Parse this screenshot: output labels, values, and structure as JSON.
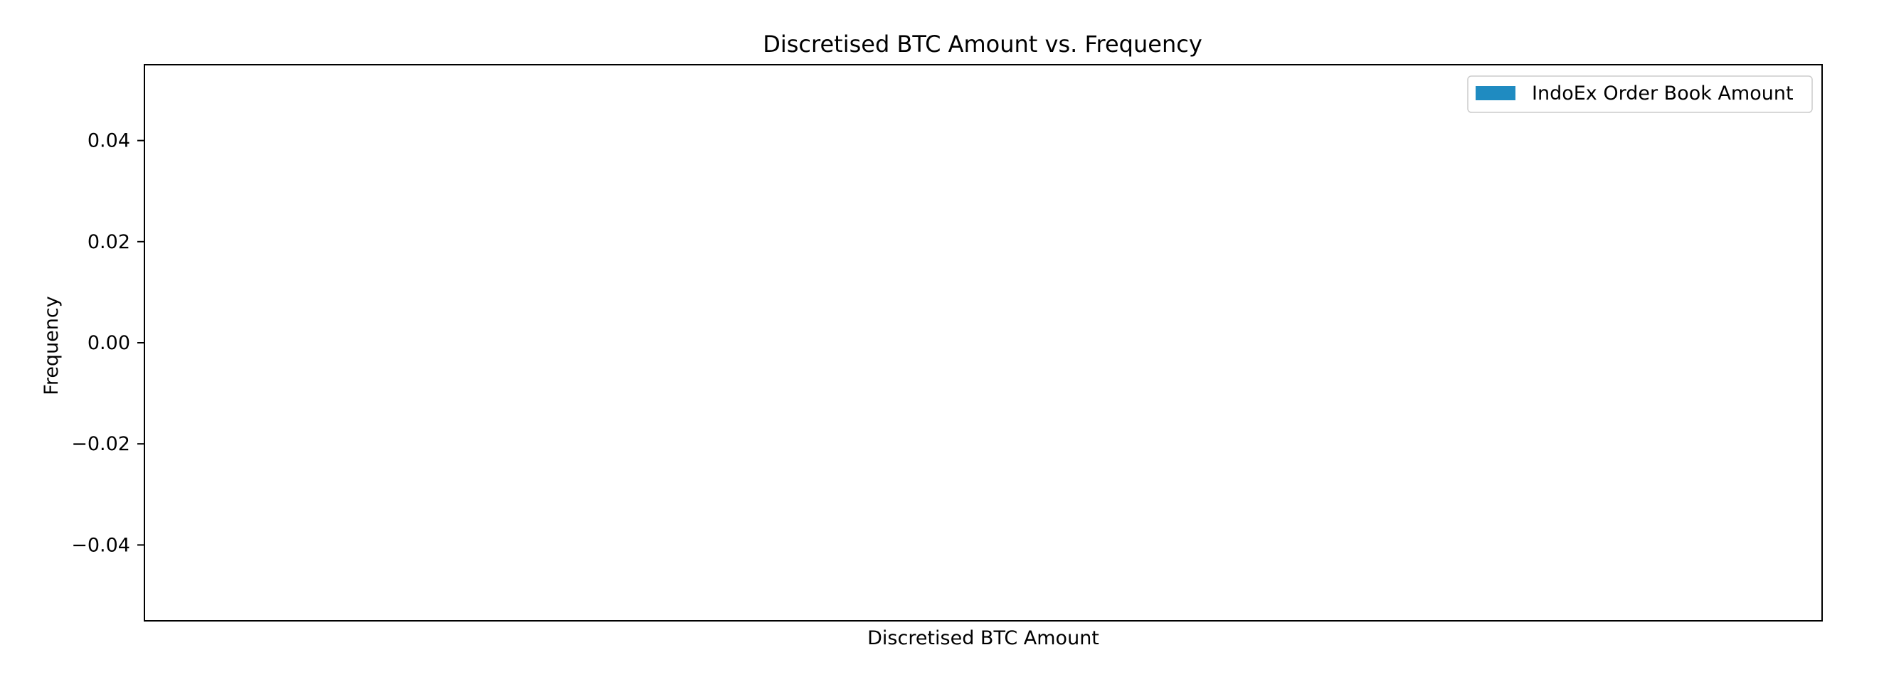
{
  "chart_data": {
    "type": "bar",
    "title": "Discretised BTC Amount vs. Frequency",
    "xlabel": "Discretised BTC Amount",
    "ylabel": "Frequency",
    "ylim": [
      -0.055,
      0.055
    ],
    "yticks": [
      {
        "value": 0.04,
        "label": "0.04"
      },
      {
        "value": 0.02,
        "label": "0.02"
      },
      {
        "value": 0.0,
        "label": "0.00"
      },
      {
        "value": -0.02,
        "label": "−0.02"
      },
      {
        "value": -0.04,
        "label": "−0.04"
      }
    ],
    "categories": [],
    "series": [
      {
        "name": "IndoEx Order Book Amount",
        "values": [],
        "color": "#1f8bc1"
      }
    ],
    "grid": false,
    "legend_position": "top-right"
  }
}
